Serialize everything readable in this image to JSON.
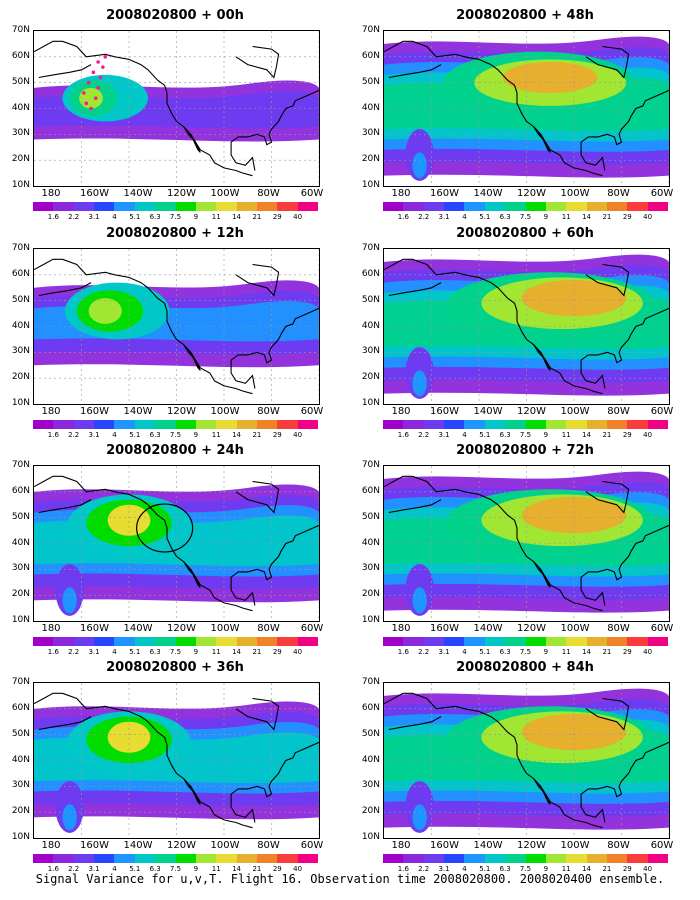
{
  "caption": "Signal Variance for u,v,T. Flight 16. Observation time 2008020800. 2008020400 ensemble.",
  "lat_labels": [
    "70N",
    "60N",
    "50N",
    "40N",
    "30N",
    "20N",
    "10N"
  ],
  "lon_labels": [
    "180",
    "160W",
    "140W",
    "120W",
    "100W",
    "80W",
    "60W"
  ],
  "colorbar": {
    "labels": [
      "1.6",
      "2.2",
      "3.1",
      "4",
      "5.1",
      "6.3",
      "7.5",
      "9",
      "11",
      "14",
      "21",
      "29",
      "40"
    ],
    "colors": [
      "#a000c8",
      "#8c28dc",
      "#6e3cf0",
      "#2846ff",
      "#1e96ff",
      "#00c8c8",
      "#00d28c",
      "#00dc00",
      "#a0e632",
      "#e6dc32",
      "#e6af2d",
      "#f08228",
      "#fa3c3c",
      "#f00082"
    ]
  },
  "panels": [
    {
      "title": "2008020800 + 00h",
      "col": 0,
      "row": 0,
      "level": 1,
      "extras": [
        "dots"
      ]
    },
    {
      "title": "2008020800 + 48h",
      "col": 1,
      "row": 0,
      "level": 4,
      "extras": []
    },
    {
      "title": "2008020800 + 12h",
      "col": 0,
      "row": 1,
      "level": 2,
      "extras": []
    },
    {
      "title": "2008020800 + 60h",
      "col": 1,
      "row": 1,
      "level": 5,
      "extras": []
    },
    {
      "title": "2008020800 + 24h",
      "col": 0,
      "row": 2,
      "level": 3,
      "extras": [
        "circle"
      ]
    },
    {
      "title": "2008020800 + 72h",
      "col": 1,
      "row": 2,
      "level": 5,
      "extras": []
    },
    {
      "title": "2008020800 + 36h",
      "col": 0,
      "row": 3,
      "level": 3,
      "extras": []
    },
    {
      "title": "2008020800 + 84h",
      "col": 1,
      "row": 3,
      "level": 5,
      "extras": []
    }
  ]
}
